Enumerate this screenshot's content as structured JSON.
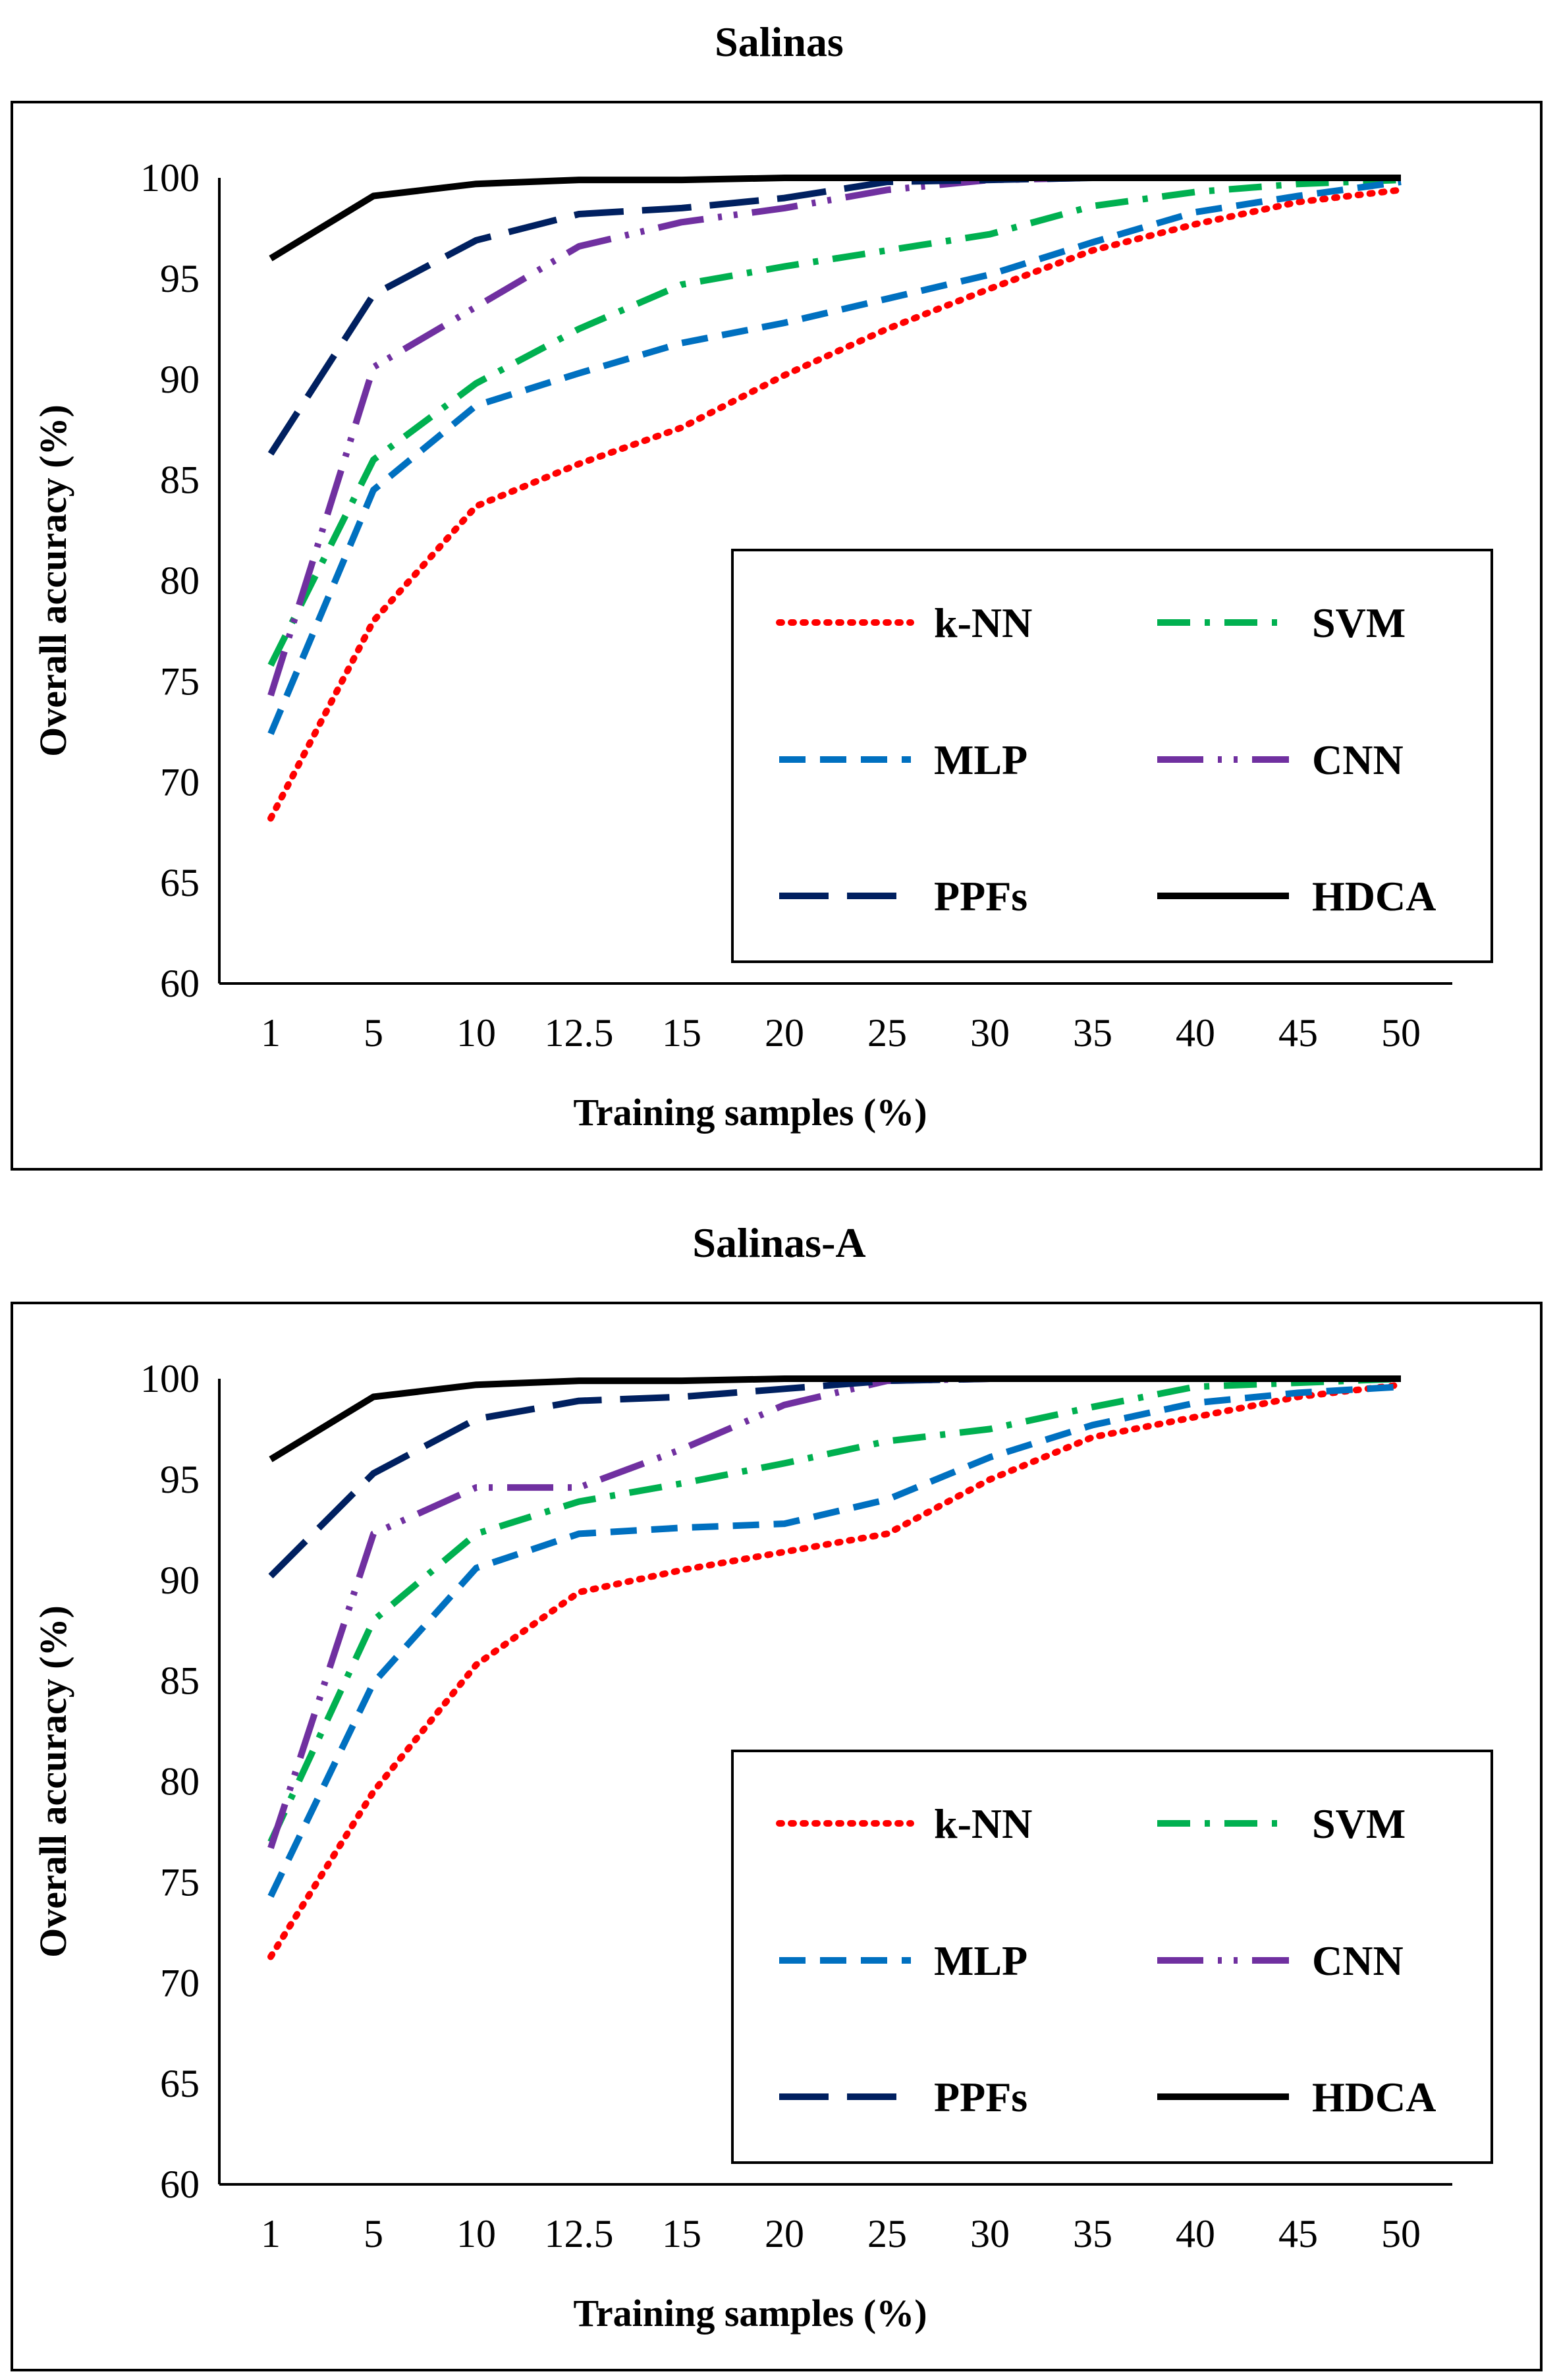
{
  "chart_data": [
    {
      "type": "line",
      "title": "Salinas",
      "xlabel": "Training samples (%)",
      "ylabel": "Overall accuracy (%)",
      "ylim": [
        60,
        100
      ],
      "yticks": [
        "60",
        "65",
        "70",
        "75",
        "80",
        "85",
        "90",
        "95",
        "100"
      ],
      "categories": [
        "1",
        "5",
        "10",
        "12.5",
        "15",
        "20",
        "25",
        "30",
        "35",
        "40",
        "45",
        "50"
      ],
      "legend": "inside-bottom-right",
      "series": [
        {
          "name": "k-NN",
          "color": "#ff0000",
          "values": [
            68.2,
            78.0,
            83.7,
            85.8,
            87.6,
            90.2,
            92.5,
            94.5,
            96.4,
            97.7,
            98.8,
            99.4
          ]
        },
        {
          "name": "SVM",
          "color": "#00b050",
          "values": [
            75.8,
            86.0,
            89.8,
            92.5,
            94.7,
            95.6,
            96.4,
            97.2,
            98.6,
            99.3,
            99.7,
            99.9
          ]
        },
        {
          "name": "MLP",
          "color": "#0070c0",
          "values": [
            72.4,
            84.5,
            88.7,
            90.3,
            91.8,
            92.8,
            94.0,
            95.2,
            96.8,
            98.3,
            99.1,
            99.8
          ]
        },
        {
          "name": "CNN",
          "color": "#7030a0",
          "values": [
            74.3,
            90.6,
            93.6,
            96.6,
            97.8,
            98.5,
            99.4,
            99.9,
            100.0,
            100.0,
            100.0,
            100.0
          ]
        },
        {
          "name": "PPFs",
          "color": "#002060",
          "values": [
            86.3,
            94.2,
            96.9,
            98.2,
            98.5,
            99.0,
            99.8,
            99.9,
            100.0,
            100.0,
            100.0,
            100.0
          ]
        },
        {
          "name": "HDCA",
          "color": "#000000",
          "values": [
            96.0,
            99.1,
            99.7,
            99.9,
            99.9,
            100.0,
            100.0,
            100.0,
            100.0,
            100.0,
            100.0,
            100.0
          ]
        }
      ]
    },
    {
      "type": "line",
      "title": "Salinas-A",
      "xlabel": "Training samples (%)",
      "ylabel": "Overall accuracy (%)",
      "ylim": [
        60,
        100
      ],
      "yticks": [
        "60",
        "65",
        "70",
        "75",
        "80",
        "85",
        "90",
        "95",
        "100"
      ],
      "categories": [
        "1",
        "5",
        "10",
        "12.5",
        "15",
        "20",
        "25",
        "30",
        "35",
        "40",
        "45",
        "50"
      ],
      "legend": "inside-bottom-right",
      "series": [
        {
          "name": "k-NN",
          "color": "#ff0000",
          "values": [
            71.3,
            79.5,
            85.8,
            89.4,
            90.5,
            91.4,
            92.3,
            95.0,
            97.1,
            98.1,
            99.1,
            99.7
          ]
        },
        {
          "name": "SVM",
          "color": "#00b050",
          "values": [
            77.0,
            88.0,
            92.3,
            93.9,
            94.8,
            95.8,
            96.9,
            97.5,
            98.6,
            99.6,
            99.8,
            100.0
          ]
        },
        {
          "name": "MLP",
          "color": "#0070c0",
          "values": [
            74.3,
            84.9,
            90.6,
            92.3,
            92.6,
            92.8,
            94.0,
            96.1,
            97.7,
            98.8,
            99.3,
            99.6
          ]
        },
        {
          "name": "CNN",
          "color": "#7030a0",
          "values": [
            76.7,
            92.3,
            94.6,
            94.6,
            96.5,
            98.7,
            99.9,
            100.0,
            100.0,
            100.0,
            100.0,
            100.0
          ]
        },
        {
          "name": "PPFs",
          "color": "#002060",
          "values": [
            90.2,
            95.3,
            98.0,
            98.9,
            99.1,
            99.5,
            99.9,
            100.0,
            100.0,
            100.0,
            100.0,
            100.0
          ]
        },
        {
          "name": "HDCA",
          "color": "#000000",
          "values": [
            96.0,
            99.1,
            99.7,
            99.9,
            99.9,
            100.0,
            100.0,
            100.0,
            100.0,
            100.0,
            100.0,
            100.0
          ]
        }
      ]
    }
  ]
}
